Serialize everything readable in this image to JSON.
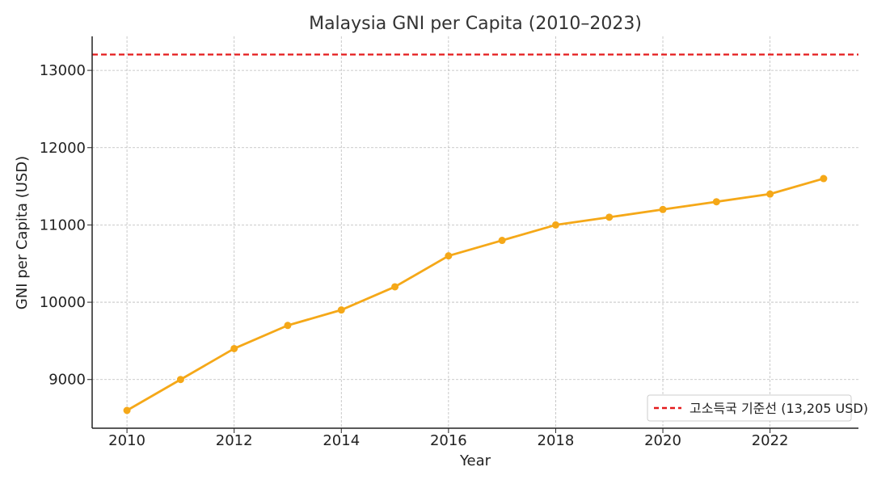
{
  "chart_data": {
    "type": "line",
    "title": "Malaysia GNI per Capita (2010–2023)",
    "xlabel": "Year",
    "ylabel": "GNI per Capita (USD)",
    "xlim": [
      2009.35,
      2023.65
    ],
    "ylim": [
      8370,
      13440
    ],
    "x_ticks": [
      2010,
      2012,
      2014,
      2016,
      2018,
      2020,
      2022
    ],
    "y_ticks": [
      9000,
      10000,
      11000,
      12000,
      13000
    ],
    "grid": true,
    "series": [
      {
        "name": "GNI per Capita",
        "color": "#F5A818",
        "x": [
          2010,
          2011,
          2012,
          2013,
          2014,
          2015,
          2016,
          2017,
          2018,
          2019,
          2020,
          2021,
          2022,
          2023
        ],
        "values": [
          8600,
          9000,
          9400,
          9700,
          9900,
          10200,
          10600,
          10800,
          11000,
          11100,
          11200,
          11300,
          11400,
          11600
        ]
      }
    ],
    "reference_line": {
      "value": 13205,
      "label": "고소득국 기준선 (13,205 USD)",
      "color": "#E41A1C",
      "style": "dashed"
    },
    "legend_position": "lower-right"
  }
}
